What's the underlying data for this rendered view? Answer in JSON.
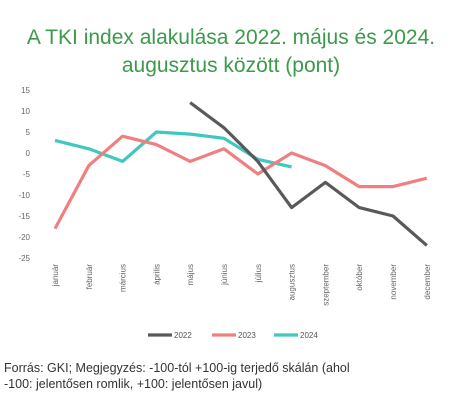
{
  "title_line1": "A TKI index alakulása 2022. május és 2024.",
  "title_line2": "augusztus között (pont)",
  "footnote_line1": "Forrás: GKI; Megjegyzés: -100-tól +100-ig terjedő skálán (ahol",
  "footnote_line2": "-100: jelentősen romlik, +100: jelentősen javul)",
  "chart_data": {
    "type": "line",
    "categories": [
      "január",
      "február",
      "március",
      "április",
      "május",
      "június",
      "július",
      "augusztus",
      "szeptember",
      "október",
      "november",
      "december"
    ],
    "ylim": [
      -25,
      15
    ],
    "yticks": [
      15,
      10,
      5,
      0,
      -5,
      -10,
      -15,
      -20,
      -25
    ],
    "grid": false,
    "legend_position": "bottom",
    "series": [
      {
        "name": "2022",
        "color": "#595959",
        "values": [
          null,
          null,
          null,
          null,
          12,
          6,
          -2,
          -13,
          -7,
          -13,
          -15,
          -22
        ]
      },
      {
        "name": "2023",
        "color": "#f08080",
        "values": [
          -18,
          -3,
          4,
          2,
          -2,
          1,
          -5,
          0,
          -3,
          -8,
          -8,
          -6
        ]
      },
      {
        "name": "2024",
        "color": "#40c8c0",
        "values": [
          3,
          1,
          -2,
          5,
          4.5,
          3.5,
          -1.5,
          -3.3,
          null,
          null,
          null,
          null
        ]
      }
    ]
  }
}
